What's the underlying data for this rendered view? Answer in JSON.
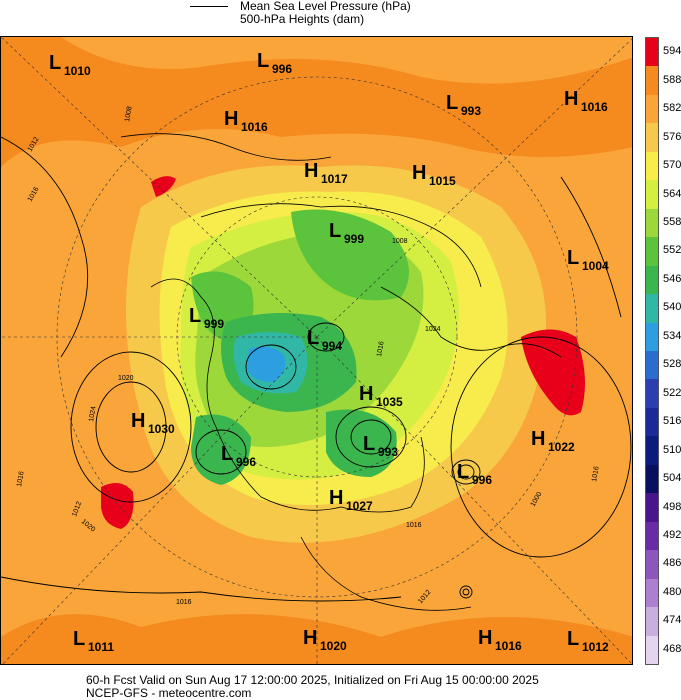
{
  "legend": {
    "line1": "Mean Sea Level Pressure (hPa)",
    "line2": "500-hPa Heights (dam)"
  },
  "colorbar": {
    "ticks": [
      "594",
      "588",
      "582",
      "576",
      "570",
      "564",
      "558",
      "552",
      "546",
      "540",
      "534",
      "528",
      "522",
      "516",
      "510",
      "504",
      "498",
      "492",
      "486",
      "480",
      "474",
      "468"
    ],
    "colors": [
      "#e8001b",
      "#f58a1f",
      "#f9a53a",
      "#f7c94a",
      "#f7ec4c",
      "#d4ee42",
      "#9cd83a",
      "#5cc33c",
      "#3bb54e",
      "#31b7a6",
      "#2d9fe0",
      "#2b6dcf",
      "#2a3fb0",
      "#1a2a96",
      "#0c1c7c",
      "#0a1060",
      "#4a148c",
      "#6a2ba4",
      "#8e55bd",
      "#ad80cf",
      "#c9aee0",
      "#e3d5ef"
    ]
  },
  "centers": [
    {
      "type": "L",
      "value": "1010"
    },
    {
      "type": "L",
      "value": "996"
    },
    {
      "type": "L",
      "value": "993"
    },
    {
      "type": "H",
      "value": "1016"
    },
    {
      "type": "H",
      "value": "1016"
    },
    {
      "type": "H",
      "value": "1017"
    },
    {
      "type": "H",
      "value": "1015"
    },
    {
      "type": "L",
      "value": "999"
    },
    {
      "type": "L",
      "value": "1004"
    },
    {
      "type": "L",
      "value": "999"
    },
    {
      "type": "L",
      "value": "994"
    },
    {
      "type": "H",
      "value": "1035"
    },
    {
      "type": "H",
      "value": "1030"
    },
    {
      "type": "L",
      "value": "996"
    },
    {
      "type": "L",
      "value": "993"
    },
    {
      "type": "H",
      "value": "1022"
    },
    {
      "type": "L",
      "value": "996"
    },
    {
      "type": "H",
      "value": "1027"
    },
    {
      "type": "L",
      "value": "1011"
    },
    {
      "type": "H",
      "value": "1020"
    },
    {
      "type": "H",
      "value": "1016"
    },
    {
      "type": "L",
      "value": "1012"
    }
  ],
  "isobar_labels": [
    "1008",
    "1012",
    "1016",
    "1008",
    "1024",
    "1020",
    "1024",
    "1016",
    "1012",
    "1020",
    "1016",
    "1016",
    "1000",
    "1016",
    "1016",
    "1012"
  ],
  "footer": {
    "line1": "60-h Fcst Valid on Sun Aug 17 12:00:00 2025, Initialized on Fri Aug 15 00:00:00 2025",
    "line2": "NCEP-GFS  - meteocentre.com"
  }
}
